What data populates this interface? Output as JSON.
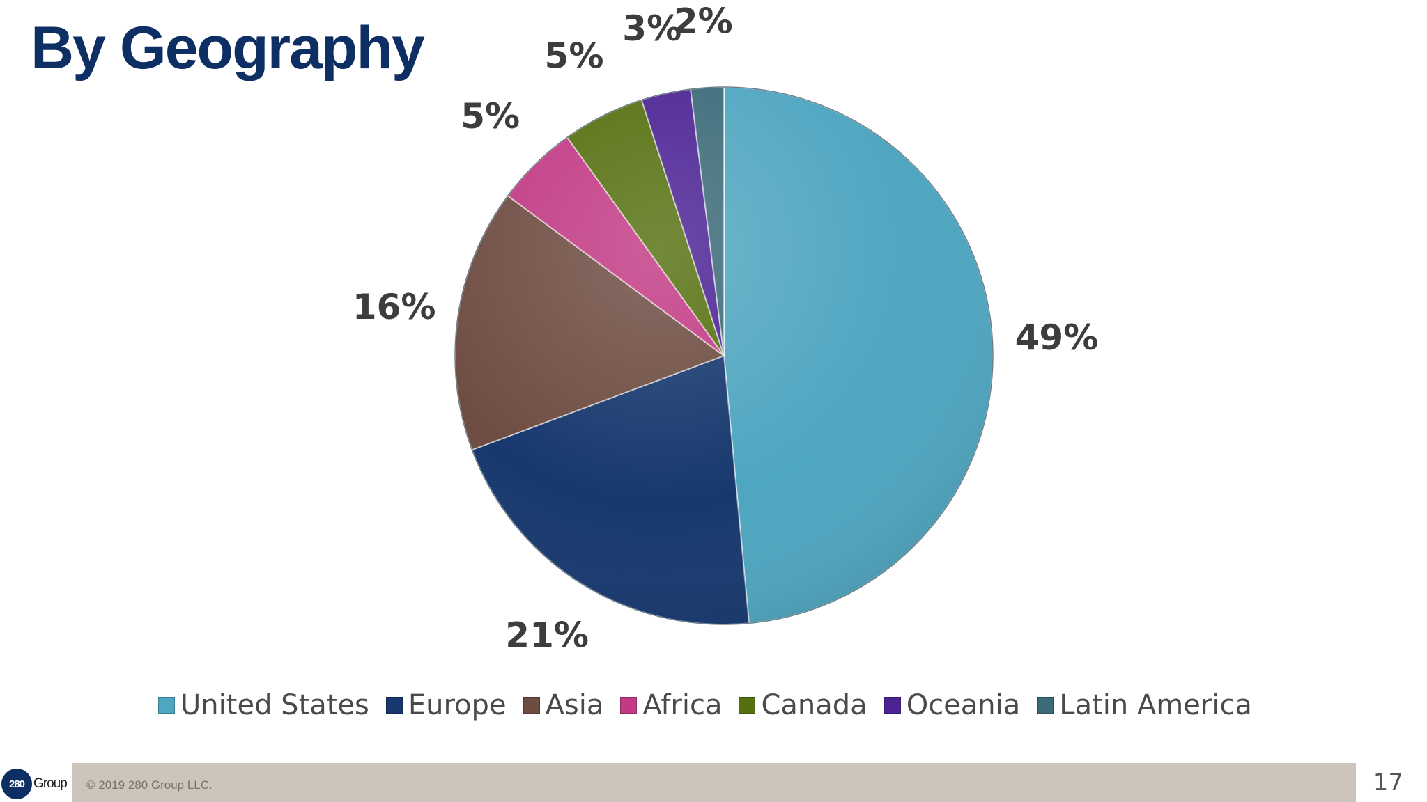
{
  "slide": {
    "title": "By Geography",
    "copyright": "© 2019 280 Group LLC.",
    "page_number": "17",
    "logo_mark": "280",
    "logo_word": "Group"
  },
  "chart_data": {
    "type": "pie",
    "title": "By Geography",
    "categories": [
      "United States",
      "Europe",
      "Asia",
      "Africa",
      "Canada",
      "Oceania",
      "Latin America"
    ],
    "values": [
      49,
      21,
      16,
      5,
      5,
      3,
      2
    ],
    "labels": [
      "49%",
      "21%",
      "16%",
      "5%",
      "5%",
      "3%",
      "2%"
    ],
    "colors": [
      "#4fa6c0",
      "#17386e",
      "#6e4c42",
      "#c23a84",
      "#55700f",
      "#4b2393",
      "#3b6a78"
    ],
    "start_angle": "12 o'clock",
    "direction": "clockwise",
    "legend_position": "bottom"
  }
}
